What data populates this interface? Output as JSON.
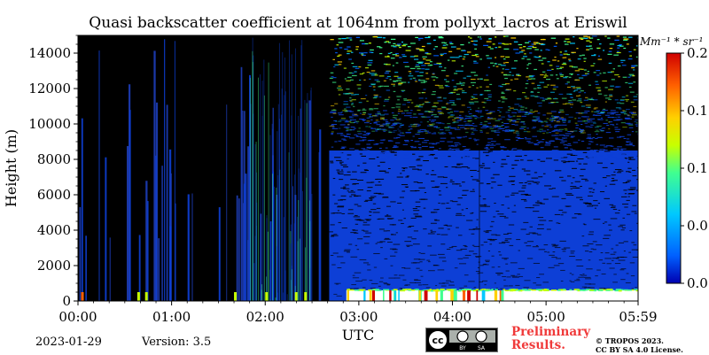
{
  "chart_data": {
    "type": "heatmap",
    "title": "Quasi backscatter coefficient at 1064nm from pollyxt_lacros at Eriswil",
    "xlabel": "UTC",
    "ylabel": "Height (m)",
    "x_range": [
      "00:00",
      "05:59"
    ],
    "x_ticks": [
      "00:00",
      "01:00",
      "02:00",
      "03:00",
      "04:00",
      "05:00",
      "05:59"
    ],
    "ylim": [
      0,
      15000
    ],
    "y_ticks": [
      0,
      2000,
      4000,
      6000,
      8000,
      10000,
      12000,
      14000
    ],
    "colorbar": {
      "unit_label": "Mm⁻¹ * sr⁻¹",
      "range": [
        0,
        0.2
      ],
      "tick_labels": [
        "0.0",
        "0.0",
        "0.1",
        "0.1",
        "0.2"
      ],
      "colormap": [
        "#0000b0",
        "#0060ff",
        "#00c8ff",
        "#40ff90",
        "#c8ff00",
        "#ffd000",
        "#ff6000",
        "#d00000"
      ]
    },
    "data_note_visible": "",
    "colors": {
      "no_signal": "#000000",
      "low_backscatter": "#0d3fd6",
      "aerosol_layer": "#ffffff"
    }
  },
  "footer": {
    "date": "2023-01-29",
    "version": "Version: 3.5",
    "preliminary": [
      "Preliminary",
      "Results."
    ],
    "license": [
      "© TROPOS 2023.",
      "CC BY SA 4.0 License."
    ],
    "badge_text": [
      "cc",
      "BY",
      "SA"
    ]
  }
}
